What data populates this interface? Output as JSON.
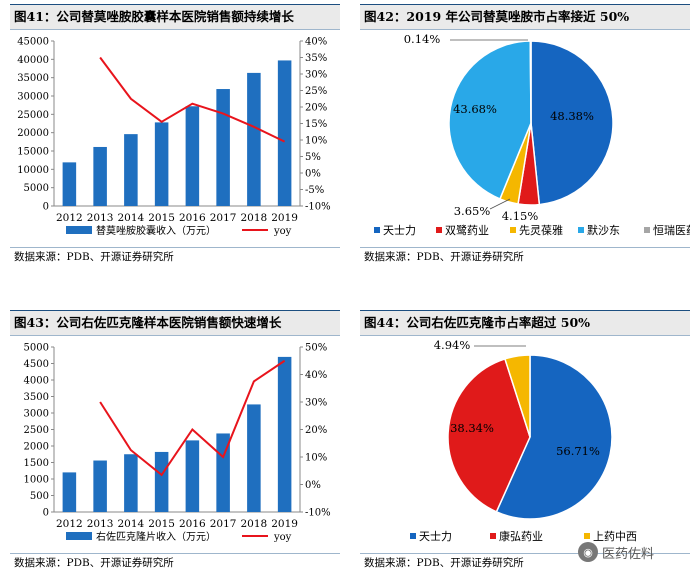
{
  "panels": [
    {
      "title": "图41：公司替莫唑胺胶囊样本医院销售额持续增长",
      "source": "数据来源：PDB、开源证券研究所"
    },
    {
      "title": "图42：2019 年公司替莫唑胺市占率接近 50%",
      "source": "数据来源：PDB、开源证券研究所"
    },
    {
      "title": "图43：公司右佐匹克隆样本医院销售额快速增长",
      "source": "数据来源：PDB、开源证券研究所"
    },
    {
      "title": "图44：公司右佐匹克隆市占率超过 50%",
      "source": "数据来源：PDB、开源证券研究所"
    }
  ],
  "watermark": "医药佐料",
  "colors": {
    "bar": "#1f6fbf",
    "line": "#e8141c",
    "title_bg": "#eaeaea",
    "rule": "#1c4e80"
  },
  "chart_data": [
    {
      "type": "bar",
      "categories": [
        "2012",
        "2013",
        "2014",
        "2015",
        "2016",
        "2017",
        "2018",
        "2019"
      ],
      "series": [
        {
          "name": "替莫唑胺胶囊收入（万元）",
          "axis": "left",
          "type": "bar",
          "values": [
            11900,
            16100,
            19600,
            22800,
            27200,
            31900,
            36300,
            39700
          ]
        },
        {
          "name": "yoy",
          "axis": "right",
          "type": "line",
          "values": [
            null,
            35.0,
            22.5,
            15.5,
            21.0,
            18.0,
            14.0,
            9.5
          ]
        }
      ],
      "yticks": [
        "0",
        "5000",
        "10000",
        "15000",
        "20000",
        "25000",
        "30000",
        "35000",
        "40000",
        "45000"
      ],
      "ylim": [
        0,
        45000
      ],
      "y2ticks": [
        "-10%",
        "-5%",
        "0%",
        "5%",
        "10%",
        "15%",
        "20%",
        "25%",
        "30%",
        "35%",
        "40%"
      ],
      "y2lim": [
        -10,
        40
      ],
      "legend": [
        "替莫唑胺胶囊收入（万元）",
        "yoy"
      ]
    },
    {
      "type": "pie",
      "slices": [
        {
          "name": "天士力",
          "value": 48.38,
          "label": "48.38%",
          "color": "#1565c0"
        },
        {
          "name": "双鹭药业",
          "value": 4.15,
          "label": "4.15%",
          "color": "#e01a1a"
        },
        {
          "name": "先灵葆雅",
          "value": 3.65,
          "label": "3.65%",
          "color": "#f5b700"
        },
        {
          "name": "默沙东",
          "value": 43.68,
          "label": "43.68%",
          "color": "#29a8e8"
        },
        {
          "name": "恒瑞医药",
          "value": 0.14,
          "label": "0.14%",
          "color": "#a6a6a6"
        }
      ],
      "legend": [
        "天士力",
        "双鹭药业",
        "先灵葆雅",
        "默沙东",
        "恒瑞医药"
      ]
    },
    {
      "type": "bar",
      "categories": [
        "2012",
        "2013",
        "2014",
        "2015",
        "2016",
        "2017",
        "2018",
        "2019"
      ],
      "series": [
        {
          "name": "右佐匹克隆片收入（万元）",
          "axis": "left",
          "type": "bar",
          "values": [
            1200,
            1560,
            1750,
            1820,
            2170,
            2380,
            3260,
            4700
          ]
        },
        {
          "name": "yoy",
          "axis": "right",
          "type": "line",
          "values": [
            null,
            30.0,
            12.5,
            3.5,
            20.0,
            10.0,
            37.5,
            45.0
          ]
        }
      ],
      "yticks": [
        "0",
        "500",
        "1000",
        "1500",
        "2000",
        "2500",
        "3000",
        "3500",
        "4000",
        "4500",
        "5000"
      ],
      "ylim": [
        0,
        5000
      ],
      "y2ticks": [
        "-10%",
        "0%",
        "10%",
        "20%",
        "30%",
        "40%",
        "50%"
      ],
      "y2lim": [
        -10,
        50
      ],
      "legend": [
        "右佐匹克隆片收入（万元）",
        "yoy"
      ]
    },
    {
      "type": "pie",
      "slices": [
        {
          "name": "天士力",
          "value": 56.71,
          "label": "56.71%",
          "color": "#1565c0"
        },
        {
          "name": "康弘药业",
          "value": 38.34,
          "label": "38.34%",
          "color": "#e01a1a"
        },
        {
          "name": "上药中西",
          "value": 4.94,
          "label": "4.94%",
          "color": "#f5b700"
        }
      ],
      "legend": [
        "天士力",
        "康弘药业",
        "上药中西"
      ]
    }
  ]
}
